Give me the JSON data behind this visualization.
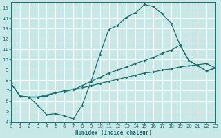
{
  "xlabel": "Humidex (Indice chaleur)",
  "bg_color": "#c8e8e8",
  "grid_color": "#ffffff",
  "line_color": "#1a6e6e",
  "xlim": [
    0,
    23
  ],
  "ylim": [
    4,
    15.5
  ],
  "xticks": [
    0,
    1,
    2,
    3,
    4,
    5,
    6,
    7,
    8,
    9,
    10,
    11,
    12,
    13,
    14,
    15,
    16,
    17,
    18,
    19,
    20,
    21,
    22,
    23
  ],
  "yticks": [
    4,
    5,
    6,
    7,
    8,
    9,
    10,
    11,
    12,
    13,
    14,
    15
  ],
  "line_high_x": [
    0,
    1,
    2,
    3,
    4,
    5,
    6,
    7,
    8,
    9,
    10,
    11,
    12,
    13,
    14,
    15,
    16,
    17,
    18,
    19,
    20,
    21,
    22,
    23
  ],
  "line_high_y": [
    7.7,
    6.5,
    6.4,
    5.6,
    4.7,
    4.8,
    4.6,
    4.3,
    5.6,
    7.9,
    10.5,
    12.9,
    13.3,
    14.1,
    14.5,
    15.3,
    15.1,
    14.4,
    13.5,
    11.4,
    9.9,
    9.4,
    8.9,
    9.2
  ],
  "line_mid_x": [
    0,
    1,
    2,
    3,
    4,
    5,
    6,
    7,
    8,
    9,
    10,
    11,
    12,
    13,
    14,
    15,
    16,
    17,
    18,
    19,
    20,
    21,
    22,
    23
  ],
  "line_mid_y": [
    7.7,
    6.5,
    6.4,
    6.4,
    6.5,
    6.8,
    6.9,
    7.1,
    7.5,
    7.9,
    8.3,
    8.7,
    9.0,
    9.3,
    9.6,
    9.9,
    10.2,
    10.6,
    10.9,
    11.4,
    9.9,
    9.4,
    8.9,
    9.2
  ],
  "line_low_x": [
    0,
    1,
    2,
    3,
    4,
    5,
    6,
    7,
    8,
    9,
    10,
    11,
    12,
    13,
    14,
    15,
    16,
    17,
    18,
    19,
    20,
    21,
    22,
    23
  ],
  "line_low_y": [
    7.7,
    6.5,
    6.4,
    6.4,
    6.6,
    6.8,
    7.0,
    7.1,
    7.3,
    7.5,
    7.7,
    7.9,
    8.1,
    8.3,
    8.5,
    8.7,
    8.8,
    9.0,
    9.1,
    9.3,
    9.4,
    9.5,
    9.6,
    9.2
  ]
}
